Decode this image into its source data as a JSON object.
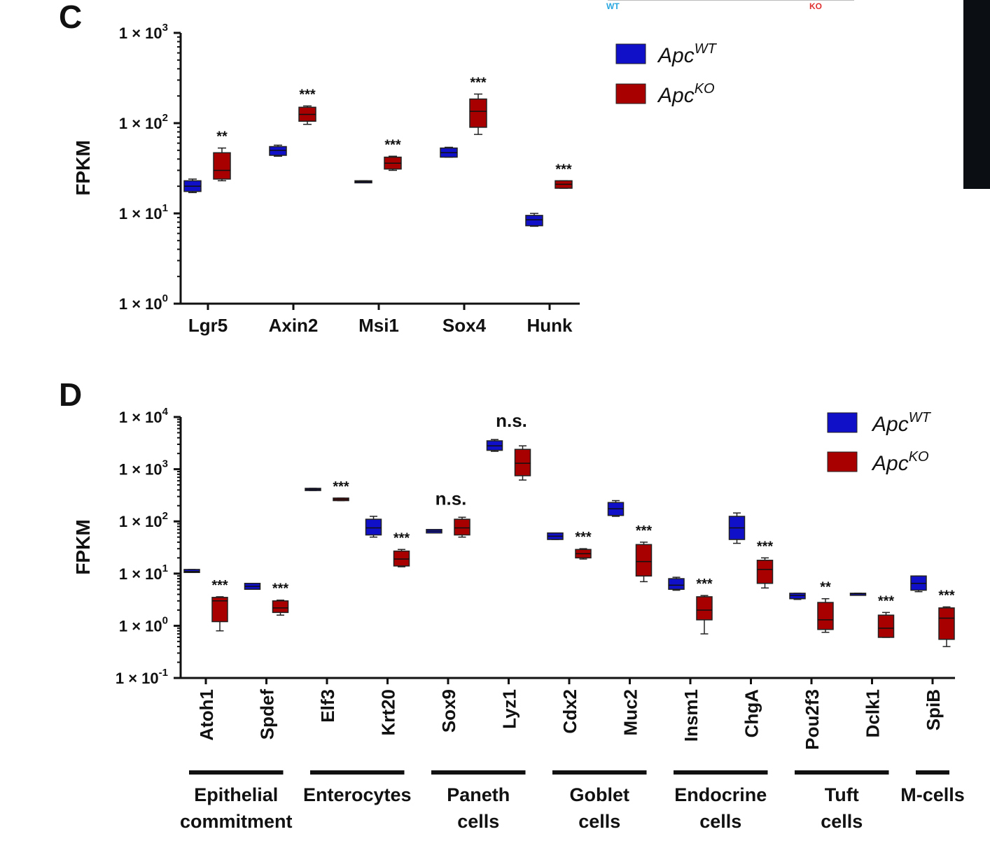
{
  "top_fragment": {
    "wt_label": "WT",
    "ko_label": "KO",
    "wt_color": "#2aa7e0",
    "ko_color": "#e03030"
  },
  "colors": {
    "wt": "#1010c8",
    "ko": "#a80000"
  },
  "chart_data": [
    {
      "type": "box",
      "panel": "C",
      "ylabel": "FPKM",
      "yscale": "log",
      "ylim": [
        1,
        1000
      ],
      "yticks": [
        {
          "base": "1 × 10",
          "exp": "3"
        },
        {
          "base": "1 × 10",
          "exp": "2"
        },
        {
          "base": "1 × 10",
          "exp": "1"
        },
        {
          "base": "1 × 10",
          "exp": "0"
        }
      ],
      "legend": [
        {
          "base": "Apc",
          "sup": "WT"
        },
        {
          "base": "Apc",
          "sup": "KO"
        }
      ],
      "categories": [
        "Lgr5",
        "Axin2",
        "Msi1",
        "Sox4",
        "Hunk"
      ],
      "significance": [
        "**",
        "***",
        "***",
        "***",
        "***"
      ],
      "series": [
        {
          "name": "ApcWT",
          "boxes": [
            {
              "min": 17,
              "q1": 17.5,
              "median": 20,
              "q3": 23,
              "max": 24
            },
            {
              "min": 43,
              "q1": 44,
              "median": 50,
              "q3": 55,
              "max": 57
            },
            {
              "min": 22,
              "q1": 22,
              "median": 22.5,
              "q3": 23,
              "max": 23
            },
            {
              "min": 42,
              "q1": 42,
              "median": 47,
              "q3": 53,
              "max": 54
            },
            {
              "min": 7.2,
              "q1": 7.3,
              "median": 8.5,
              "q3": 9.5,
              "max": 10
            }
          ]
        },
        {
          "name": "ApcKO",
          "boxes": [
            {
              "min": 23,
              "q1": 24,
              "median": 30,
              "q3": 47,
              "max": 53
            },
            {
              "min": 97,
              "q1": 105,
              "median": 125,
              "q3": 150,
              "max": 155
            },
            {
              "min": 30,
              "q1": 31,
              "median": 36,
              "q3": 42,
              "max": 43
            },
            {
              "min": 75,
              "q1": 90,
              "median": 135,
              "q3": 185,
              "max": 210
            },
            {
              "min": 19,
              "q1": 19,
              "median": 21,
              "q3": 23,
              "max": 23
            }
          ]
        }
      ]
    },
    {
      "type": "box",
      "panel": "D",
      "ylabel": "FPKM",
      "yscale": "log",
      "ylim": [
        0.1,
        10000
      ],
      "yticks": [
        {
          "base": "1 × 10",
          "exp": "4"
        },
        {
          "base": "1 × 10",
          "exp": "3"
        },
        {
          "base": "1 × 10",
          "exp": "2"
        },
        {
          "base": "1 × 10",
          "exp": "1"
        },
        {
          "base": "1 × 10",
          "exp": "0"
        },
        {
          "base": "1 × 10",
          "exp": "-1"
        }
      ],
      "legend": [
        {
          "base": "Apc",
          "sup": "WT"
        },
        {
          "base": "Apc",
          "sup": "KO"
        }
      ],
      "categories": [
        "Atoh1",
        "Spdef",
        "Elf3",
        "Krt20",
        "Sox9",
        "Lyz1",
        "Cdx2",
        "Muc2",
        "Insm1",
        "ChgA",
        "Pou2f3",
        "Dclk1",
        "SpiB"
      ],
      "significance": [
        "***",
        "***",
        "***",
        "***",
        "n.s.",
        "n.s.",
        "***",
        "***",
        "***",
        "***",
        "**",
        "***",
        "***"
      ],
      "groups": [
        {
          "lines": [
            "Epithelial",
            "commitment"
          ],
          "from": 0,
          "to": 1
        },
        {
          "lines": [
            "Enterocytes"
          ],
          "from": 2,
          "to": 3
        },
        {
          "lines": [
            "Paneth",
            "cells"
          ],
          "from": 4,
          "to": 5
        },
        {
          "lines": [
            "Goblet",
            "cells"
          ],
          "from": 6,
          "to": 7
        },
        {
          "lines": [
            "Endocrine",
            "cells"
          ],
          "from": 8,
          "to": 9
        },
        {
          "lines": [
            "Tuft",
            "cells"
          ],
          "from": 10,
          "to": 11
        },
        {
          "lines": [
            "M-cells"
          ],
          "from": 12,
          "to": 12
        }
      ],
      "series": [
        {
          "name": "ApcWT",
          "boxes": [
            {
              "min": 10.5,
              "q1": 10.5,
              "median": 11,
              "q3": 12,
              "max": 12
            },
            {
              "min": 5,
              "q1": 5,
              "median": 5.7,
              "q3": 6.5,
              "max": 6.5
            },
            {
              "min": 390,
              "q1": 390,
              "median": 410,
              "q3": 430,
              "max": 430
            },
            {
              "min": 50,
              "q1": 55,
              "median": 75,
              "q3": 110,
              "max": 125
            },
            {
              "min": 60,
              "q1": 60,
              "median": 65,
              "q3": 70,
              "max": 70
            },
            {
              "min": 2200,
              "q1": 2300,
              "median": 2800,
              "q3": 3500,
              "max": 3700
            },
            {
              "min": 45,
              "q1": 45,
              "median": 52,
              "q3": 60,
              "max": 60
            },
            {
              "min": 125,
              "q1": 130,
              "median": 175,
              "q3": 230,
              "max": 250
            },
            {
              "min": 4.8,
              "q1": 5,
              "median": 6,
              "q3": 8,
              "max": 8.5
            },
            {
              "min": 38,
              "q1": 45,
              "median": 75,
              "q3": 125,
              "max": 145
            },
            {
              "min": 3.2,
              "q1": 3.3,
              "median": 3.8,
              "q3": 4.2,
              "max": 4.2
            },
            {
              "min": 3.9,
              "q1": 3.9,
              "median": 4.1,
              "q3": 4.2,
              "max": 4.2
            },
            {
              "min": 4.5,
              "q1": 4.8,
              "median": 6.5,
              "q3": 9,
              "max": 9
            }
          ]
        },
        {
          "name": "ApcKO",
          "boxes": [
            {
              "min": 0.8,
              "q1": 1.2,
              "median": 3,
              "q3": 3.5,
              "max": 3.6
            },
            {
              "min": 1.6,
              "q1": 1.8,
              "median": 2.2,
              "q3": 3,
              "max": 3.1
            },
            {
              "min": 250,
              "q1": 250,
              "median": 265,
              "q3": 280,
              "max": 280
            },
            {
              "min": 13.5,
              "q1": 14,
              "median": 19,
              "q3": 27,
              "max": 29
            },
            {
              "min": 50,
              "q1": 55,
              "median": 75,
              "q3": 110,
              "max": 120
            },
            {
              "min": 620,
              "q1": 750,
              "median": 1300,
              "q3": 2400,
              "max": 2800
            },
            {
              "min": 19,
              "q1": 20,
              "median": 24,
              "q3": 29,
              "max": 30
            },
            {
              "min": 7,
              "q1": 9,
              "median": 17,
              "q3": 36,
              "max": 40
            },
            {
              "min": 0.7,
              "q1": 1.3,
              "median": 2,
              "q3": 3.6,
              "max": 3.8
            },
            {
              "min": 5.3,
              "q1": 6.5,
              "median": 12,
              "q3": 18,
              "max": 20
            },
            {
              "min": 0.75,
              "q1": 0.85,
              "median": 1.3,
              "q3": 2.8,
              "max": 3.3
            },
            {
              "min": 0.6,
              "q1": 0.6,
              "median": 0.9,
              "q3": 1.6,
              "max": 1.8
            },
            {
              "min": 0.4,
              "q1": 0.55,
              "median": 1.4,
              "q3": 2.2,
              "max": 2.3
            }
          ]
        }
      ]
    }
  ]
}
